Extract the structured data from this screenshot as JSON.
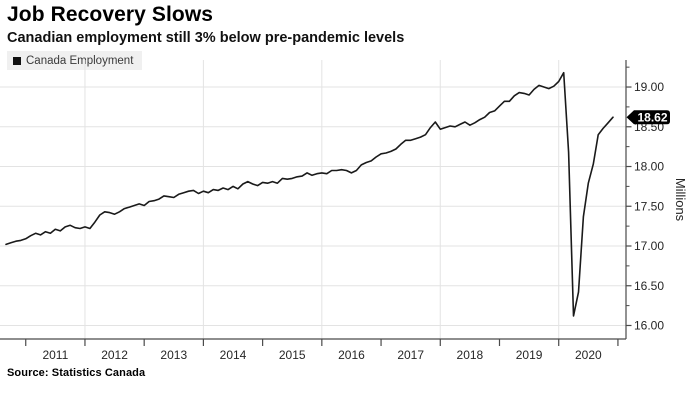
{
  "chart_data": {
    "type": "line",
    "title": "Job Recovery Slows",
    "subtitle": "Canadian employment still 3% below pre-pandemic levels",
    "source": "Source: Statistics Canada",
    "ylabel_right": "Millions",
    "unit": "millions of people employed",
    "frequency": "monthly",
    "x_range": [
      "2010-09",
      "2020-12"
    ],
    "x_tick_labels": [
      "2011",
      "2012",
      "2013",
      "2014",
      "2015",
      "2016",
      "2017",
      "2018",
      "2019",
      "2020"
    ],
    "y_ticks": [
      "19.00",
      "18.50",
      "18.00",
      "17.50",
      "17.00",
      "16.50",
      "16.00"
    ],
    "ylim": [
      15.83,
      19.34
    ],
    "grid": {
      "horizontal": true,
      "vertical_years": [
        2012,
        2014,
        2016,
        2018,
        2020
      ]
    },
    "legend": [
      {
        "label": "Canada Employment",
        "color": "#1a1a1a"
      }
    ],
    "last_value_label": "18.62",
    "series": [
      {
        "name": "Canada Employment",
        "start": "2010-09",
        "values": [
          17.02,
          17.04,
          17.06,
          17.07,
          17.09,
          17.13,
          17.16,
          17.14,
          17.18,
          17.16,
          17.21,
          17.19,
          17.24,
          17.26,
          17.23,
          17.22,
          17.24,
          17.22,
          17.3,
          17.39,
          17.43,
          17.42,
          17.4,
          17.43,
          17.47,
          17.49,
          17.51,
          17.53,
          17.51,
          17.56,
          17.57,
          17.59,
          17.63,
          17.62,
          17.61,
          17.65,
          17.67,
          17.69,
          17.7,
          17.66,
          17.69,
          17.67,
          17.71,
          17.7,
          17.73,
          17.71,
          17.75,
          17.72,
          17.78,
          17.81,
          17.78,
          17.76,
          17.8,
          17.79,
          17.81,
          17.79,
          17.85,
          17.84,
          17.85,
          17.87,
          17.88,
          17.92,
          17.89,
          17.91,
          17.92,
          17.91,
          17.95,
          17.95,
          17.96,
          17.95,
          17.92,
          17.95,
          18.02,
          18.05,
          18.07,
          18.12,
          18.16,
          18.17,
          18.19,
          18.22,
          18.28,
          18.33,
          18.33,
          18.35,
          18.37,
          18.4,
          18.49,
          18.56,
          18.47,
          18.49,
          18.51,
          18.5,
          18.53,
          18.56,
          18.52,
          18.55,
          18.59,
          18.62,
          18.68,
          18.7,
          18.76,
          18.82,
          18.82,
          18.89,
          18.93,
          18.92,
          18.9,
          18.97,
          19.02,
          19.0,
          18.98,
          19.01,
          19.07,
          19.18,
          18.18,
          16.12,
          16.42,
          17.37,
          17.79,
          18.03,
          18.4,
          18.48,
          18.55,
          18.62
        ]
      }
    ]
  },
  "colors": {
    "line": "#1a1a1a",
    "grid": "#e3e3e3",
    "axis": "#4a4a4a",
    "text": "#262626",
    "badge_bg": "#000000",
    "badge_text": "#ffffff",
    "legend_bg": "#f0f0f0"
  }
}
